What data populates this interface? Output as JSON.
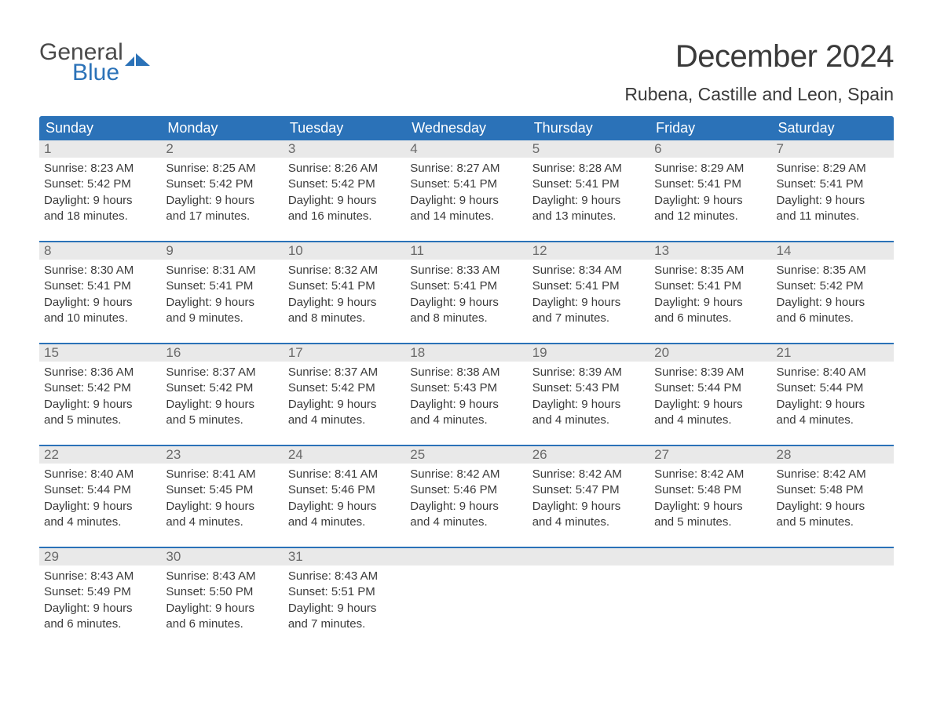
{
  "logo": {
    "word1": "General",
    "word2": "Blue",
    "accent_color": "#2b72b8",
    "text_color": "#4a4a4a"
  },
  "title": "December 2024",
  "location": "Rubena, Castille and Leon, Spain",
  "colors": {
    "header_bg": "#2b72b8",
    "header_text": "#ffffff",
    "daynum_bg": "#e9e9e9",
    "daynum_text": "#6a6a6a",
    "body_text": "#3a3a3a",
    "page_bg": "#ffffff",
    "week_divider": "#2b72b8"
  },
  "typography": {
    "title_fontsize": 40,
    "location_fontsize": 23,
    "dayheader_fontsize": 18,
    "daynum_fontsize": 17,
    "content_fontsize": 15
  },
  "day_headers": [
    "Sunday",
    "Monday",
    "Tuesday",
    "Wednesday",
    "Thursday",
    "Friday",
    "Saturday"
  ],
  "weeks": [
    [
      {
        "num": "1",
        "sunrise": "Sunrise: 8:23 AM",
        "sunset": "Sunset: 5:42 PM",
        "daylight1": "Daylight: 9 hours",
        "daylight2": "and 18 minutes."
      },
      {
        "num": "2",
        "sunrise": "Sunrise: 8:25 AM",
        "sunset": "Sunset: 5:42 PM",
        "daylight1": "Daylight: 9 hours",
        "daylight2": "and 17 minutes."
      },
      {
        "num": "3",
        "sunrise": "Sunrise: 8:26 AM",
        "sunset": "Sunset: 5:42 PM",
        "daylight1": "Daylight: 9 hours",
        "daylight2": "and 16 minutes."
      },
      {
        "num": "4",
        "sunrise": "Sunrise: 8:27 AM",
        "sunset": "Sunset: 5:41 PM",
        "daylight1": "Daylight: 9 hours",
        "daylight2": "and 14 minutes."
      },
      {
        "num": "5",
        "sunrise": "Sunrise: 8:28 AM",
        "sunset": "Sunset: 5:41 PM",
        "daylight1": "Daylight: 9 hours",
        "daylight2": "and 13 minutes."
      },
      {
        "num": "6",
        "sunrise": "Sunrise: 8:29 AM",
        "sunset": "Sunset: 5:41 PM",
        "daylight1": "Daylight: 9 hours",
        "daylight2": "and 12 minutes."
      },
      {
        "num": "7",
        "sunrise": "Sunrise: 8:29 AM",
        "sunset": "Sunset: 5:41 PM",
        "daylight1": "Daylight: 9 hours",
        "daylight2": "and 11 minutes."
      }
    ],
    [
      {
        "num": "8",
        "sunrise": "Sunrise: 8:30 AM",
        "sunset": "Sunset: 5:41 PM",
        "daylight1": "Daylight: 9 hours",
        "daylight2": "and 10 minutes."
      },
      {
        "num": "9",
        "sunrise": "Sunrise: 8:31 AM",
        "sunset": "Sunset: 5:41 PM",
        "daylight1": "Daylight: 9 hours",
        "daylight2": "and 9 minutes."
      },
      {
        "num": "10",
        "sunrise": "Sunrise: 8:32 AM",
        "sunset": "Sunset: 5:41 PM",
        "daylight1": "Daylight: 9 hours",
        "daylight2": "and 8 minutes."
      },
      {
        "num": "11",
        "sunrise": "Sunrise: 8:33 AM",
        "sunset": "Sunset: 5:41 PM",
        "daylight1": "Daylight: 9 hours",
        "daylight2": "and 8 minutes."
      },
      {
        "num": "12",
        "sunrise": "Sunrise: 8:34 AM",
        "sunset": "Sunset: 5:41 PM",
        "daylight1": "Daylight: 9 hours",
        "daylight2": "and 7 minutes."
      },
      {
        "num": "13",
        "sunrise": "Sunrise: 8:35 AM",
        "sunset": "Sunset: 5:41 PM",
        "daylight1": "Daylight: 9 hours",
        "daylight2": "and 6 minutes."
      },
      {
        "num": "14",
        "sunrise": "Sunrise: 8:35 AM",
        "sunset": "Sunset: 5:42 PM",
        "daylight1": "Daylight: 9 hours",
        "daylight2": "and 6 minutes."
      }
    ],
    [
      {
        "num": "15",
        "sunrise": "Sunrise: 8:36 AM",
        "sunset": "Sunset: 5:42 PM",
        "daylight1": "Daylight: 9 hours",
        "daylight2": "and 5 minutes."
      },
      {
        "num": "16",
        "sunrise": "Sunrise: 8:37 AM",
        "sunset": "Sunset: 5:42 PM",
        "daylight1": "Daylight: 9 hours",
        "daylight2": "and 5 minutes."
      },
      {
        "num": "17",
        "sunrise": "Sunrise: 8:37 AM",
        "sunset": "Sunset: 5:42 PM",
        "daylight1": "Daylight: 9 hours",
        "daylight2": "and 4 minutes."
      },
      {
        "num": "18",
        "sunrise": "Sunrise: 8:38 AM",
        "sunset": "Sunset: 5:43 PM",
        "daylight1": "Daylight: 9 hours",
        "daylight2": "and 4 minutes."
      },
      {
        "num": "19",
        "sunrise": "Sunrise: 8:39 AM",
        "sunset": "Sunset: 5:43 PM",
        "daylight1": "Daylight: 9 hours",
        "daylight2": "and 4 minutes."
      },
      {
        "num": "20",
        "sunrise": "Sunrise: 8:39 AM",
        "sunset": "Sunset: 5:44 PM",
        "daylight1": "Daylight: 9 hours",
        "daylight2": "and 4 minutes."
      },
      {
        "num": "21",
        "sunrise": "Sunrise: 8:40 AM",
        "sunset": "Sunset: 5:44 PM",
        "daylight1": "Daylight: 9 hours",
        "daylight2": "and 4 minutes."
      }
    ],
    [
      {
        "num": "22",
        "sunrise": "Sunrise: 8:40 AM",
        "sunset": "Sunset: 5:44 PM",
        "daylight1": "Daylight: 9 hours",
        "daylight2": "and 4 minutes."
      },
      {
        "num": "23",
        "sunrise": "Sunrise: 8:41 AM",
        "sunset": "Sunset: 5:45 PM",
        "daylight1": "Daylight: 9 hours",
        "daylight2": "and 4 minutes."
      },
      {
        "num": "24",
        "sunrise": "Sunrise: 8:41 AM",
        "sunset": "Sunset: 5:46 PM",
        "daylight1": "Daylight: 9 hours",
        "daylight2": "and 4 minutes."
      },
      {
        "num": "25",
        "sunrise": "Sunrise: 8:42 AM",
        "sunset": "Sunset: 5:46 PM",
        "daylight1": "Daylight: 9 hours",
        "daylight2": "and 4 minutes."
      },
      {
        "num": "26",
        "sunrise": "Sunrise: 8:42 AM",
        "sunset": "Sunset: 5:47 PM",
        "daylight1": "Daylight: 9 hours",
        "daylight2": "and 4 minutes."
      },
      {
        "num": "27",
        "sunrise": "Sunrise: 8:42 AM",
        "sunset": "Sunset: 5:48 PM",
        "daylight1": "Daylight: 9 hours",
        "daylight2": "and 5 minutes."
      },
      {
        "num": "28",
        "sunrise": "Sunrise: 8:42 AM",
        "sunset": "Sunset: 5:48 PM",
        "daylight1": "Daylight: 9 hours",
        "daylight2": "and 5 minutes."
      }
    ],
    [
      {
        "num": "29",
        "sunrise": "Sunrise: 8:43 AM",
        "sunset": "Sunset: 5:49 PM",
        "daylight1": "Daylight: 9 hours",
        "daylight2": "and 6 minutes."
      },
      {
        "num": "30",
        "sunrise": "Sunrise: 8:43 AM",
        "sunset": "Sunset: 5:50 PM",
        "daylight1": "Daylight: 9 hours",
        "daylight2": "and 6 minutes."
      },
      {
        "num": "31",
        "sunrise": "Sunrise: 8:43 AM",
        "sunset": "Sunset: 5:51 PM",
        "daylight1": "Daylight: 9 hours",
        "daylight2": "and 7 minutes."
      },
      {
        "empty": true
      },
      {
        "empty": true
      },
      {
        "empty": true
      },
      {
        "empty": true
      }
    ]
  ]
}
